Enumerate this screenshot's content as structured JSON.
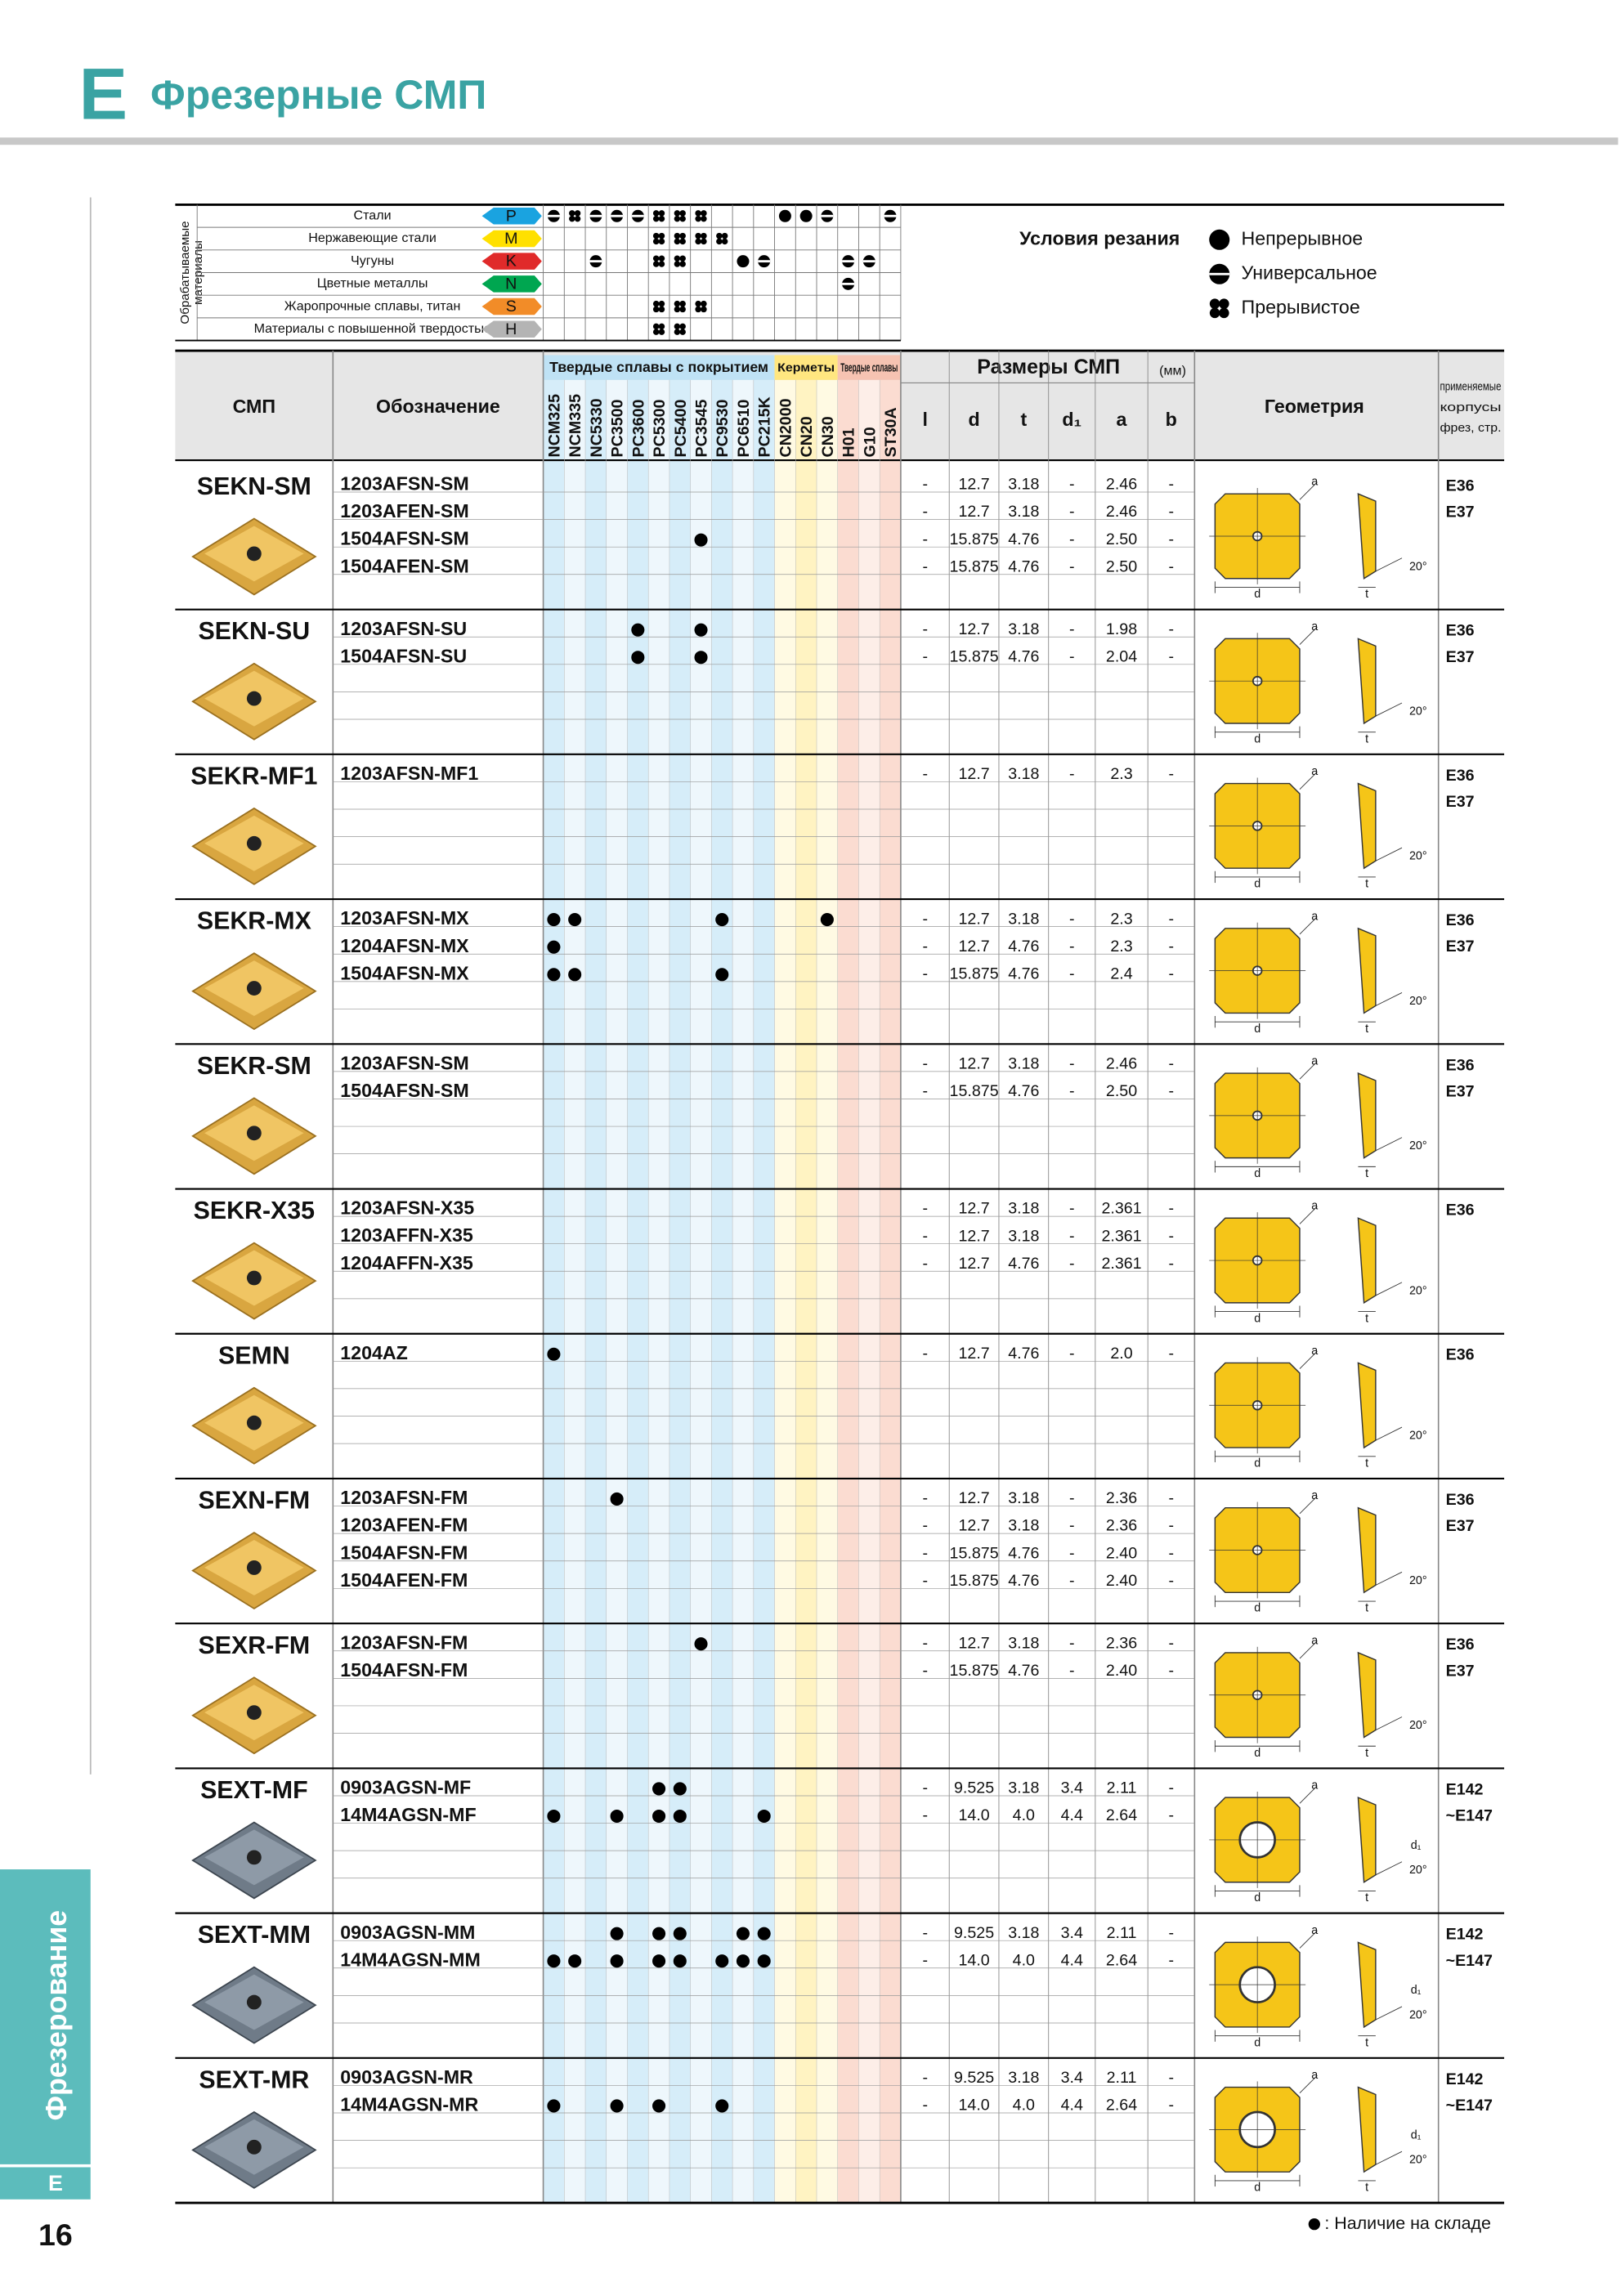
{
  "header": {
    "letter": "E",
    "title": "Фрезерные СМП"
  },
  "materials": {
    "label": [
      "Обрабатываемые",
      "материалы"
    ],
    "rows": [
      {
        "name": "Стали",
        "code": "P",
        "color": "#1aa3e0",
        "marks": [
          2,
          3,
          2,
          2,
          2,
          3,
          3,
          3,
          null,
          null,
          null,
          1,
          1,
          2,
          null,
          null,
          2
        ]
      },
      {
        "name": "Нержавеющие стали",
        "code": "M",
        "color": "#ffe000",
        "marks": [
          null,
          null,
          null,
          null,
          null,
          3,
          3,
          3,
          3,
          null,
          null,
          null,
          null,
          null,
          null,
          null,
          null
        ]
      },
      {
        "name": "Чугуны",
        "code": "K",
        "color": "#e02a2a",
        "marks": [
          null,
          null,
          2,
          null,
          null,
          3,
          3,
          null,
          null,
          1,
          2,
          null,
          null,
          null,
          2,
          2,
          null
        ]
      },
      {
        "name": "Цветные металлы",
        "code": "N",
        "color": "#00a650",
        "marks": [
          null,
          null,
          null,
          null,
          null,
          null,
          null,
          null,
          null,
          null,
          null,
          null,
          null,
          null,
          2,
          null,
          null
        ]
      },
      {
        "name": "Жаропрочные сплавы, титан",
        "code": "S",
        "color": "#f28c28",
        "marks": [
          null,
          null,
          null,
          null,
          null,
          3,
          3,
          3,
          null,
          null,
          null,
          null,
          null,
          null,
          null,
          null,
          null
        ]
      },
      {
        "name": "Материалы с повышенной твердостью",
        "code": "H",
        "color": "#b4b4b4",
        "marks": [
          null,
          null,
          null,
          null,
          null,
          3,
          3,
          null,
          null,
          null,
          null,
          null,
          null,
          null,
          null,
          null,
          null
        ]
      }
    ]
  },
  "conditions": {
    "title": "Условия резания",
    "items": [
      "Непрерывное",
      "Универсальное",
      "Прерывистое"
    ]
  },
  "table": {
    "insert": "СМП",
    "designation": "Обозначение",
    "grade_groups": [
      {
        "label": "Твердые сплавы с покрытием",
        "grades": [
          "NCM325",
          "NCM335",
          "NC5330",
          "PC3500",
          "PC3600",
          "PC5300",
          "PC5400",
          "PC3545",
          "PC9530",
          "PC6510",
          "PC215K"
        ]
      },
      {
        "label": "Керметы",
        "grades": [
          "CN2000",
          "CN20",
          "CN30"
        ]
      },
      {
        "label": "Твердые сплавы",
        "grades": [
          "H01",
          "G10",
          "ST30A"
        ]
      }
    ],
    "sizes_title": "Размеры СМП",
    "sizes_unit": "(мм)",
    "size_columns": [
      "l",
      "d",
      "t",
      "d₁",
      "a",
      "b"
    ],
    "geometry": "Геометрия",
    "bodies": [
      "применяемые",
      "корпусы",
      "фрез, стр."
    ],
    "geometry_labels": [
      "a",
      "d",
      "t",
      "20°",
      "d₁"
    ],
    "rows": [
      {
        "insert": "SEKN-SM",
        "pages": [
          "E36",
          "E37"
        ],
        "items": [
          {
            "code": "1203AFSN-SM",
            "stock": [],
            "dims": [
              "-",
              "12.7",
              "3.18",
              "-",
              "2.46",
              "-"
            ]
          },
          {
            "code": "1203AFEN-SM",
            "stock": [],
            "dims": [
              "-",
              "12.7",
              "3.18",
              "-",
              "2.46",
              "-"
            ]
          },
          {
            "code": "1504AFSN-SM",
            "stock": [
              7
            ],
            "dims": [
              "-",
              "15.875",
              "4.76",
              "-",
              "2.50",
              "-"
            ]
          },
          {
            "code": "1504AFEN-SM",
            "stock": [],
            "dims": [
              "-",
              "15.875",
              "4.76",
              "-",
              "2.50",
              "-"
            ]
          }
        ]
      },
      {
        "insert": "SEKN-SU",
        "pages": [
          "E36",
          "E37"
        ],
        "items": [
          {
            "code": "1203AFSN-SU",
            "stock": [
              4,
              7
            ],
            "dims": [
              "-",
              "12.7",
              "3.18",
              "-",
              "1.98",
              "-"
            ]
          },
          {
            "code": "1504AFSN-SU",
            "stock": [
              4,
              7
            ],
            "dims": [
              "-",
              "15.875",
              "4.76",
              "-",
              "2.04",
              "-"
            ]
          }
        ]
      },
      {
        "insert": "SEKR-MF1",
        "pages": [
          "E36",
          "E37"
        ],
        "items": [
          {
            "code": "1203AFSN-MF1",
            "stock": [],
            "dims": [
              "-",
              "12.7",
              "3.18",
              "-",
              "2.3",
              "-"
            ]
          }
        ]
      },
      {
        "insert": "SEKR-MX",
        "pages": [
          "E36",
          "E37"
        ],
        "items": [
          {
            "code": "1203AFSN-MX",
            "stock": [
              0,
              1,
              8,
              13
            ],
            "dims": [
              "-",
              "12.7",
              "3.18",
              "-",
              "2.3",
              "-"
            ]
          },
          {
            "code": "1204AFSN-MX",
            "stock": [
              0
            ],
            "dims": [
              "-",
              "12.7",
              "4.76",
              "-",
              "2.3",
              "-"
            ]
          },
          {
            "code": "1504AFSN-MX",
            "stock": [
              0,
              1,
              8
            ],
            "dims": [
              "-",
              "15.875",
              "4.76",
              "-",
              "2.4",
              "-"
            ]
          }
        ]
      },
      {
        "insert": "SEKR-SM",
        "pages": [
          "E36",
          "E37"
        ],
        "items": [
          {
            "code": "1203AFSN-SM",
            "stock": [],
            "dims": [
              "-",
              "12.7",
              "3.18",
              "-",
              "2.46",
              "-"
            ]
          },
          {
            "code": "1504AFSN-SM",
            "stock": [],
            "dims": [
              "-",
              "15.875",
              "4.76",
              "-",
              "2.50",
              "-"
            ]
          }
        ]
      },
      {
        "insert": "SEKR-X35",
        "pages": [
          "E36"
        ],
        "items": [
          {
            "code": "1203AFSN-X35",
            "stock": [],
            "dims": [
              "-",
              "12.7",
              "3.18",
              "-",
              "2.361",
              "-"
            ]
          },
          {
            "code": "1203AFFN-X35",
            "stock": [],
            "dims": [
              "-",
              "12.7",
              "3.18",
              "-",
              "2.361",
              "-"
            ]
          },
          {
            "code": "1204AFFN-X35",
            "stock": [],
            "dims": [
              "-",
              "12.7",
              "4.76",
              "-",
              "2.361",
              "-"
            ]
          }
        ]
      },
      {
        "insert": "SEMN",
        "pages": [
          "E36"
        ],
        "items": [
          {
            "code": "1204AZ",
            "stock": [
              0
            ],
            "dims": [
              "-",
              "12.7",
              "4.76",
              "-",
              "2.0",
              "-"
            ]
          }
        ]
      },
      {
        "insert": "SEXN-FM",
        "pages": [
          "E36",
          "E37"
        ],
        "items": [
          {
            "code": "1203AFSN-FM",
            "stock": [
              3
            ],
            "dims": [
              "-",
              "12.7",
              "3.18",
              "-",
              "2.36",
              "-"
            ]
          },
          {
            "code": "1203AFEN-FM",
            "stock": [],
            "dims": [
              "-",
              "12.7",
              "3.18",
              "-",
              "2.36",
              "-"
            ]
          },
          {
            "code": "1504AFSN-FM",
            "stock": [],
            "dims": [
              "-",
              "15.875",
              "4.76",
              "-",
              "2.40",
              "-"
            ]
          },
          {
            "code": "1504AFEN-FM",
            "stock": [],
            "dims": [
              "-",
              "15.875",
              "4.76",
              "-",
              "2.40",
              "-"
            ]
          }
        ]
      },
      {
        "insert": "SEXR-FM",
        "pages": [
          "E36",
          "E37"
        ],
        "items": [
          {
            "code": "1203AFSN-FM",
            "stock": [
              7
            ],
            "dims": [
              "-",
              "12.7",
              "3.18",
              "-",
              "2.36",
              "-"
            ]
          },
          {
            "code": "1504AFSN-FM",
            "stock": [],
            "dims": [
              "-",
              "15.875",
              "4.76",
              "-",
              "2.40",
              "-"
            ]
          }
        ]
      },
      {
        "insert": "SEXT-MF",
        "pages": [
          "E142",
          "~E147"
        ],
        "items": [
          {
            "code": "0903AGSN-MF",
            "stock": [
              5,
              6
            ],
            "dims": [
              "-",
              "9.525",
              "3.18",
              "3.4",
              "2.11",
              "-"
            ]
          },
          {
            "code": "14M4AGSN-MF",
            "stock": [
              0,
              3,
              5,
              6,
              10
            ],
            "dims": [
              "-",
              "14.0",
              "4.0",
              "4.4",
              "2.64",
              "-"
            ]
          }
        ]
      },
      {
        "insert": "SEXT-MM",
        "pages": [
          "E142",
          "~E147"
        ],
        "items": [
          {
            "code": "0903AGSN-MM",
            "stock": [
              3,
              5,
              6,
              9,
              10
            ],
            "dims": [
              "-",
              "9.525",
              "3.18",
              "3.4",
              "2.11",
              "-"
            ]
          },
          {
            "code": "14M4AGSN-MM",
            "stock": [
              0,
              1,
              3,
              5,
              6,
              8,
              9,
              10
            ],
            "dims": [
              "-",
              "14.0",
              "4.0",
              "4.4",
              "2.64",
              "-"
            ]
          }
        ]
      },
      {
        "insert": "SEXT-MR",
        "pages": [
          "E142",
          "~E147"
        ],
        "items": [
          {
            "code": "0903AGSN-MR",
            "stock": [],
            "dims": [
              "-",
              "9.525",
              "3.18",
              "3.4",
              "2.11",
              "-"
            ]
          },
          {
            "code": "14M4AGSN-MR",
            "stock": [
              0,
              3,
              5,
              8
            ],
            "dims": [
              "-",
              "14.0",
              "4.0",
              "4.4",
              "2.64",
              "-"
            ]
          }
        ]
      }
    ]
  },
  "footer": {
    "note": ": Наличие на складе"
  },
  "side": {
    "label": "Фрезерование",
    "letter": "E",
    "page": "16"
  }
}
